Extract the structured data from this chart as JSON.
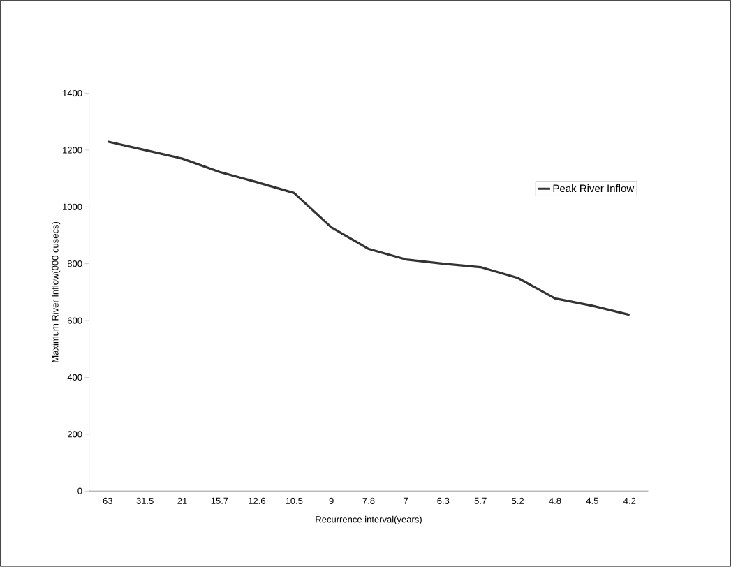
{
  "chart_data": {
    "type": "line",
    "xlabel": "Recurrence interval(years)",
    "ylabel": "Maximum River Inflow(000 cusecs)",
    "categories": [
      "63",
      "31.5",
      "21",
      "15.7",
      "12.6",
      "10.5",
      "9",
      "7.8",
      "7",
      "6.3",
      "5.7",
      "5.2",
      "4.8",
      "4.5",
      "4.2"
    ],
    "series": [
      {
        "name": "Peak River Inflow",
        "color": "#333333",
        "values": [
          1230,
          1200,
          1170,
          1123,
          1087,
          1049,
          928,
          852,
          815,
          800,
          788,
          750,
          678,
          652,
          620
        ]
      }
    ],
    "ylim": [
      0,
      1400
    ],
    "yticks": [
      0,
      200,
      400,
      600,
      800,
      1000,
      1200,
      1400
    ],
    "legend": "right",
    "grid": false,
    "marker": "none",
    "line_style": "solid"
  }
}
